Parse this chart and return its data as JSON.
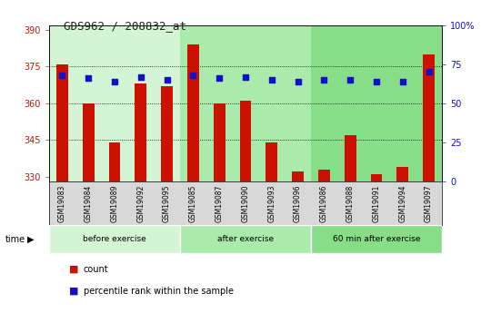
{
  "title": "GDS962 / 208832_at",
  "samples": [
    "GSM19083",
    "GSM19084",
    "GSM19089",
    "GSM19092",
    "GSM19095",
    "GSM19085",
    "GSM19087",
    "GSM19090",
    "GSM19093",
    "GSM19096",
    "GSM19086",
    "GSM19088",
    "GSM19091",
    "GSM19094",
    "GSM19097"
  ],
  "counts": [
    376,
    360,
    344,
    368,
    367,
    384,
    360,
    361,
    344,
    332,
    333,
    347,
    331,
    334,
    380
  ],
  "percentiles": [
    68,
    66,
    64,
    67,
    65,
    68,
    66,
    67,
    65,
    64,
    65,
    65,
    64,
    64,
    70
  ],
  "groups": [
    {
      "label": "before exercise",
      "start": 0,
      "end": 5,
      "color": "#d4f5d4"
    },
    {
      "label": "after exercise",
      "start": 5,
      "end": 10,
      "color": "#aaeaaa"
    },
    {
      "label": "60 min after exercise",
      "start": 10,
      "end": 15,
      "color": "#88dd88"
    }
  ],
  "ylim_left": [
    328,
    392
  ],
  "ylim_right": [
    0,
    100
  ],
  "yticks_left": [
    330,
    345,
    360,
    375,
    390
  ],
  "yticks_right": [
    0,
    25,
    50,
    75,
    100
  ],
  "bar_color": "#cc1100",
  "dot_color": "#1111cc",
  "left_axis_color": "#cc1100",
  "right_axis_color": "#1111cc",
  "xtick_bg": "#d8d8d8",
  "legend_count_label": "count",
  "legend_pct_label": "percentile rank within the sample",
  "grid_yticks": [
    345,
    360,
    375
  ],
  "bar_width": 0.45
}
